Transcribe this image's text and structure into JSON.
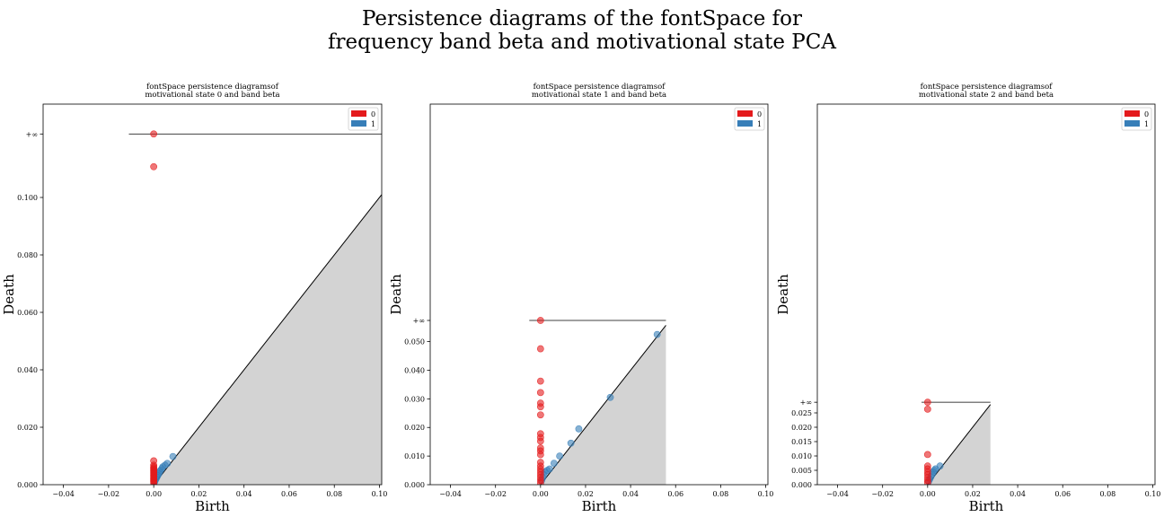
{
  "figure": {
    "suptitle_lines": [
      "Persistence diagrams of the fontSpace for",
      "frequency band beta and motivational state PCA"
    ]
  },
  "chart_data": [
    {
      "type": "scatter",
      "title_lines": [
        "fontSpace  persistence  diagramsof",
        "motivational  state 0 and  band  beta"
      ],
      "xlabel": "Birth",
      "ylabel": "Death",
      "xlim": [
        -0.049,
        0.101
      ],
      "ylim": [
        0.0,
        0.1325
      ],
      "xticks": [
        -0.04,
        -0.02,
        0.0,
        0.02,
        0.04,
        0.06,
        0.08,
        0.1
      ],
      "xtick_labels": [
        "−0.04",
        "−0.02",
        "0.00",
        "0.02",
        "0.04",
        "0.06",
        "0.08",
        "0.10"
      ],
      "yticks": [
        0.0,
        0.02,
        0.04,
        0.06,
        0.08,
        0.1,
        0.1221
      ],
      "ytick_labels": [
        "0.000",
        "0.020",
        "0.040",
        "0.060",
        "0.080",
        "0.100",
        "+∞"
      ],
      "infinity_value": 0.1221,
      "infinity_line_x": [
        -0.011,
        0.101
      ],
      "diagonal_end": 0.101,
      "legend": {
        "placement": "top-right",
        "entries": [
          "0",
          "1"
        ]
      },
      "series": [
        {
          "name": "0",
          "color": "#e41a1c",
          "points": [
            [
              0,
              0.1221
            ],
            [
              0,
              0.1107
            ],
            [
              0,
              0.0083
            ],
            [
              0,
              0.0068
            ],
            [
              0,
              0.0062
            ],
            [
              0,
              0.0058
            ],
            [
              0,
              0.0054
            ],
            [
              0,
              0.005
            ],
            [
              0,
              0.0046
            ],
            [
              0,
              0.0042
            ],
            [
              0,
              0.0038
            ],
            [
              0,
              0.0034
            ],
            [
              0,
              0.003
            ],
            [
              0,
              0.0026
            ],
            [
              0,
              0.0022
            ],
            [
              0,
              0.0018
            ],
            [
              0,
              0.0014
            ],
            [
              0,
              0.001
            ],
            [
              0,
              0.0006
            ]
          ]
        },
        {
          "name": "1",
          "color": "#377eb8",
          "points": [
            [
              0.0003,
              0.0008
            ],
            [
              0.0006,
              0.0014
            ],
            [
              0.001,
              0.002
            ],
            [
              0.0014,
              0.0026
            ],
            [
              0.0018,
              0.0032
            ],
            [
              0.0022,
              0.0038
            ],
            [
              0.0026,
              0.0045
            ],
            [
              0.003,
              0.005
            ],
            [
              0.0036,
              0.0056
            ],
            [
              0.004,
              0.0062
            ],
            [
              0.005,
              0.0068
            ],
            [
              0.006,
              0.0074
            ],
            [
              0.0085,
              0.0098
            ]
          ]
        }
      ]
    },
    {
      "type": "scatter",
      "title_lines": [
        "fontSpace  persistence  diagramsof",
        "motivational  state 1 and  band  beta"
      ],
      "xlabel": "Birth",
      "ylabel": "Death",
      "xlim": [
        -0.049,
        0.101
      ],
      "ylim": [
        0.0,
        0.133
      ],
      "xticks": [
        -0.04,
        -0.02,
        0.0,
        0.02,
        0.04,
        0.06,
        0.08,
        0.1
      ],
      "xtick_labels": [
        "−0.04",
        "−0.02",
        "0.00",
        "0.02",
        "0.04",
        "0.06",
        "0.08",
        "0.10"
      ],
      "yticks": [
        0.0,
        0.01,
        0.02,
        0.03,
        0.04,
        0.05,
        0.0574
      ],
      "ytick_labels": [
        "0.000",
        "0.010",
        "0.020",
        "0.030",
        "0.040",
        "0.050",
        "+∞"
      ],
      "infinity_value": 0.0574,
      "infinity_line_x": [
        -0.005,
        0.0557
      ],
      "diagonal_end": 0.0557,
      "legend": {
        "placement": "top-right",
        "entries": [
          "0",
          "1"
        ]
      },
      "series": [
        {
          "name": "0",
          "color": "#e41a1c",
          "points": [
            [
              0,
              0.0574
            ],
            [
              0,
              0.0475
            ],
            [
              0,
              0.0362
            ],
            [
              0,
              0.0322
            ],
            [
              0,
              0.0285
            ],
            [
              0,
              0.0272
            ],
            [
              0,
              0.0244
            ],
            [
              0,
              0.0178
            ],
            [
              0,
              0.0165
            ],
            [
              0,
              0.0152
            ],
            [
              0,
              0.0128
            ],
            [
              0,
              0.0118
            ],
            [
              0,
              0.0105
            ],
            [
              0,
              0.0078
            ],
            [
              0,
              0.0065
            ],
            [
              0,
              0.0055
            ],
            [
              0,
              0.0045
            ],
            [
              0,
              0.0035
            ],
            [
              0,
              0.0025
            ],
            [
              0,
              0.0015
            ],
            [
              0,
              0.0006
            ]
          ]
        },
        {
          "name": "1",
          "color": "#377eb8",
          "points": [
            [
              0.0005,
              0.0015
            ],
            [
              0.001,
              0.0025
            ],
            [
              0.0015,
              0.0035
            ],
            [
              0.002,
              0.0045
            ],
            [
              0.003,
              0.005
            ],
            [
              0.004,
              0.0055
            ],
            [
              0.006,
              0.0075
            ],
            [
              0.0085,
              0.01
            ],
            [
              0.0135,
              0.0145
            ],
            [
              0.017,
              0.0195
            ],
            [
              0.031,
              0.0305
            ],
            [
              0.0518,
              0.0525
            ]
          ]
        }
      ]
    },
    {
      "type": "scatter",
      "title_lines": [
        "fontSpace  persistence  diagramsof",
        "motivational  state 2 and  band  beta"
      ],
      "xlabel": "Birth",
      "ylabel": "Death",
      "xlim": [
        -0.049,
        0.101
      ],
      "ylim": [
        0.0,
        0.1325
      ],
      "xticks": [
        -0.04,
        -0.02,
        0.0,
        0.02,
        0.04,
        0.06,
        0.08,
        0.1
      ],
      "xtick_labels": [
        "−0.04",
        "−0.02",
        "0.00",
        "0.02",
        "0.04",
        "0.06",
        "0.08",
        "0.10"
      ],
      "yticks": [
        0.0,
        0.005,
        0.01,
        0.015,
        0.02,
        0.025,
        0.0287
      ],
      "ytick_labels": [
        "0.000",
        "0.005",
        "0.010",
        "0.015",
        "0.020",
        "0.025",
        "+∞"
      ],
      "infinity_value": 0.0287,
      "infinity_line_x": [
        -0.0027,
        0.0279
      ],
      "diagonal_end": 0.0279,
      "legend": {
        "placement": "top-right",
        "entries": [
          "0",
          "1"
        ]
      },
      "series": [
        {
          "name": "0",
          "color": "#e41a1c",
          "points": [
            [
              0,
              0.0287
            ],
            [
              0,
              0.0263
            ],
            [
              0,
              0.0105
            ],
            [
              0,
              0.0065
            ],
            [
              0,
              0.0055
            ],
            [
              0,
              0.0045
            ],
            [
              0,
              0.0035
            ],
            [
              0,
              0.0025
            ],
            [
              0,
              0.0015
            ],
            [
              0,
              0.0007
            ]
          ]
        },
        {
          "name": "1",
          "color": "#377eb8",
          "points": [
            [
              0.0005,
              0.0012
            ],
            [
              0.001,
              0.002
            ],
            [
              0.0015,
              0.0028
            ],
            [
              0.002,
              0.0036
            ],
            [
              0.0025,
              0.0044
            ],
            [
              0.003,
              0.005
            ],
            [
              0.0035,
              0.0055
            ],
            [
              0.0055,
              0.0065
            ]
          ]
        }
      ]
    }
  ]
}
